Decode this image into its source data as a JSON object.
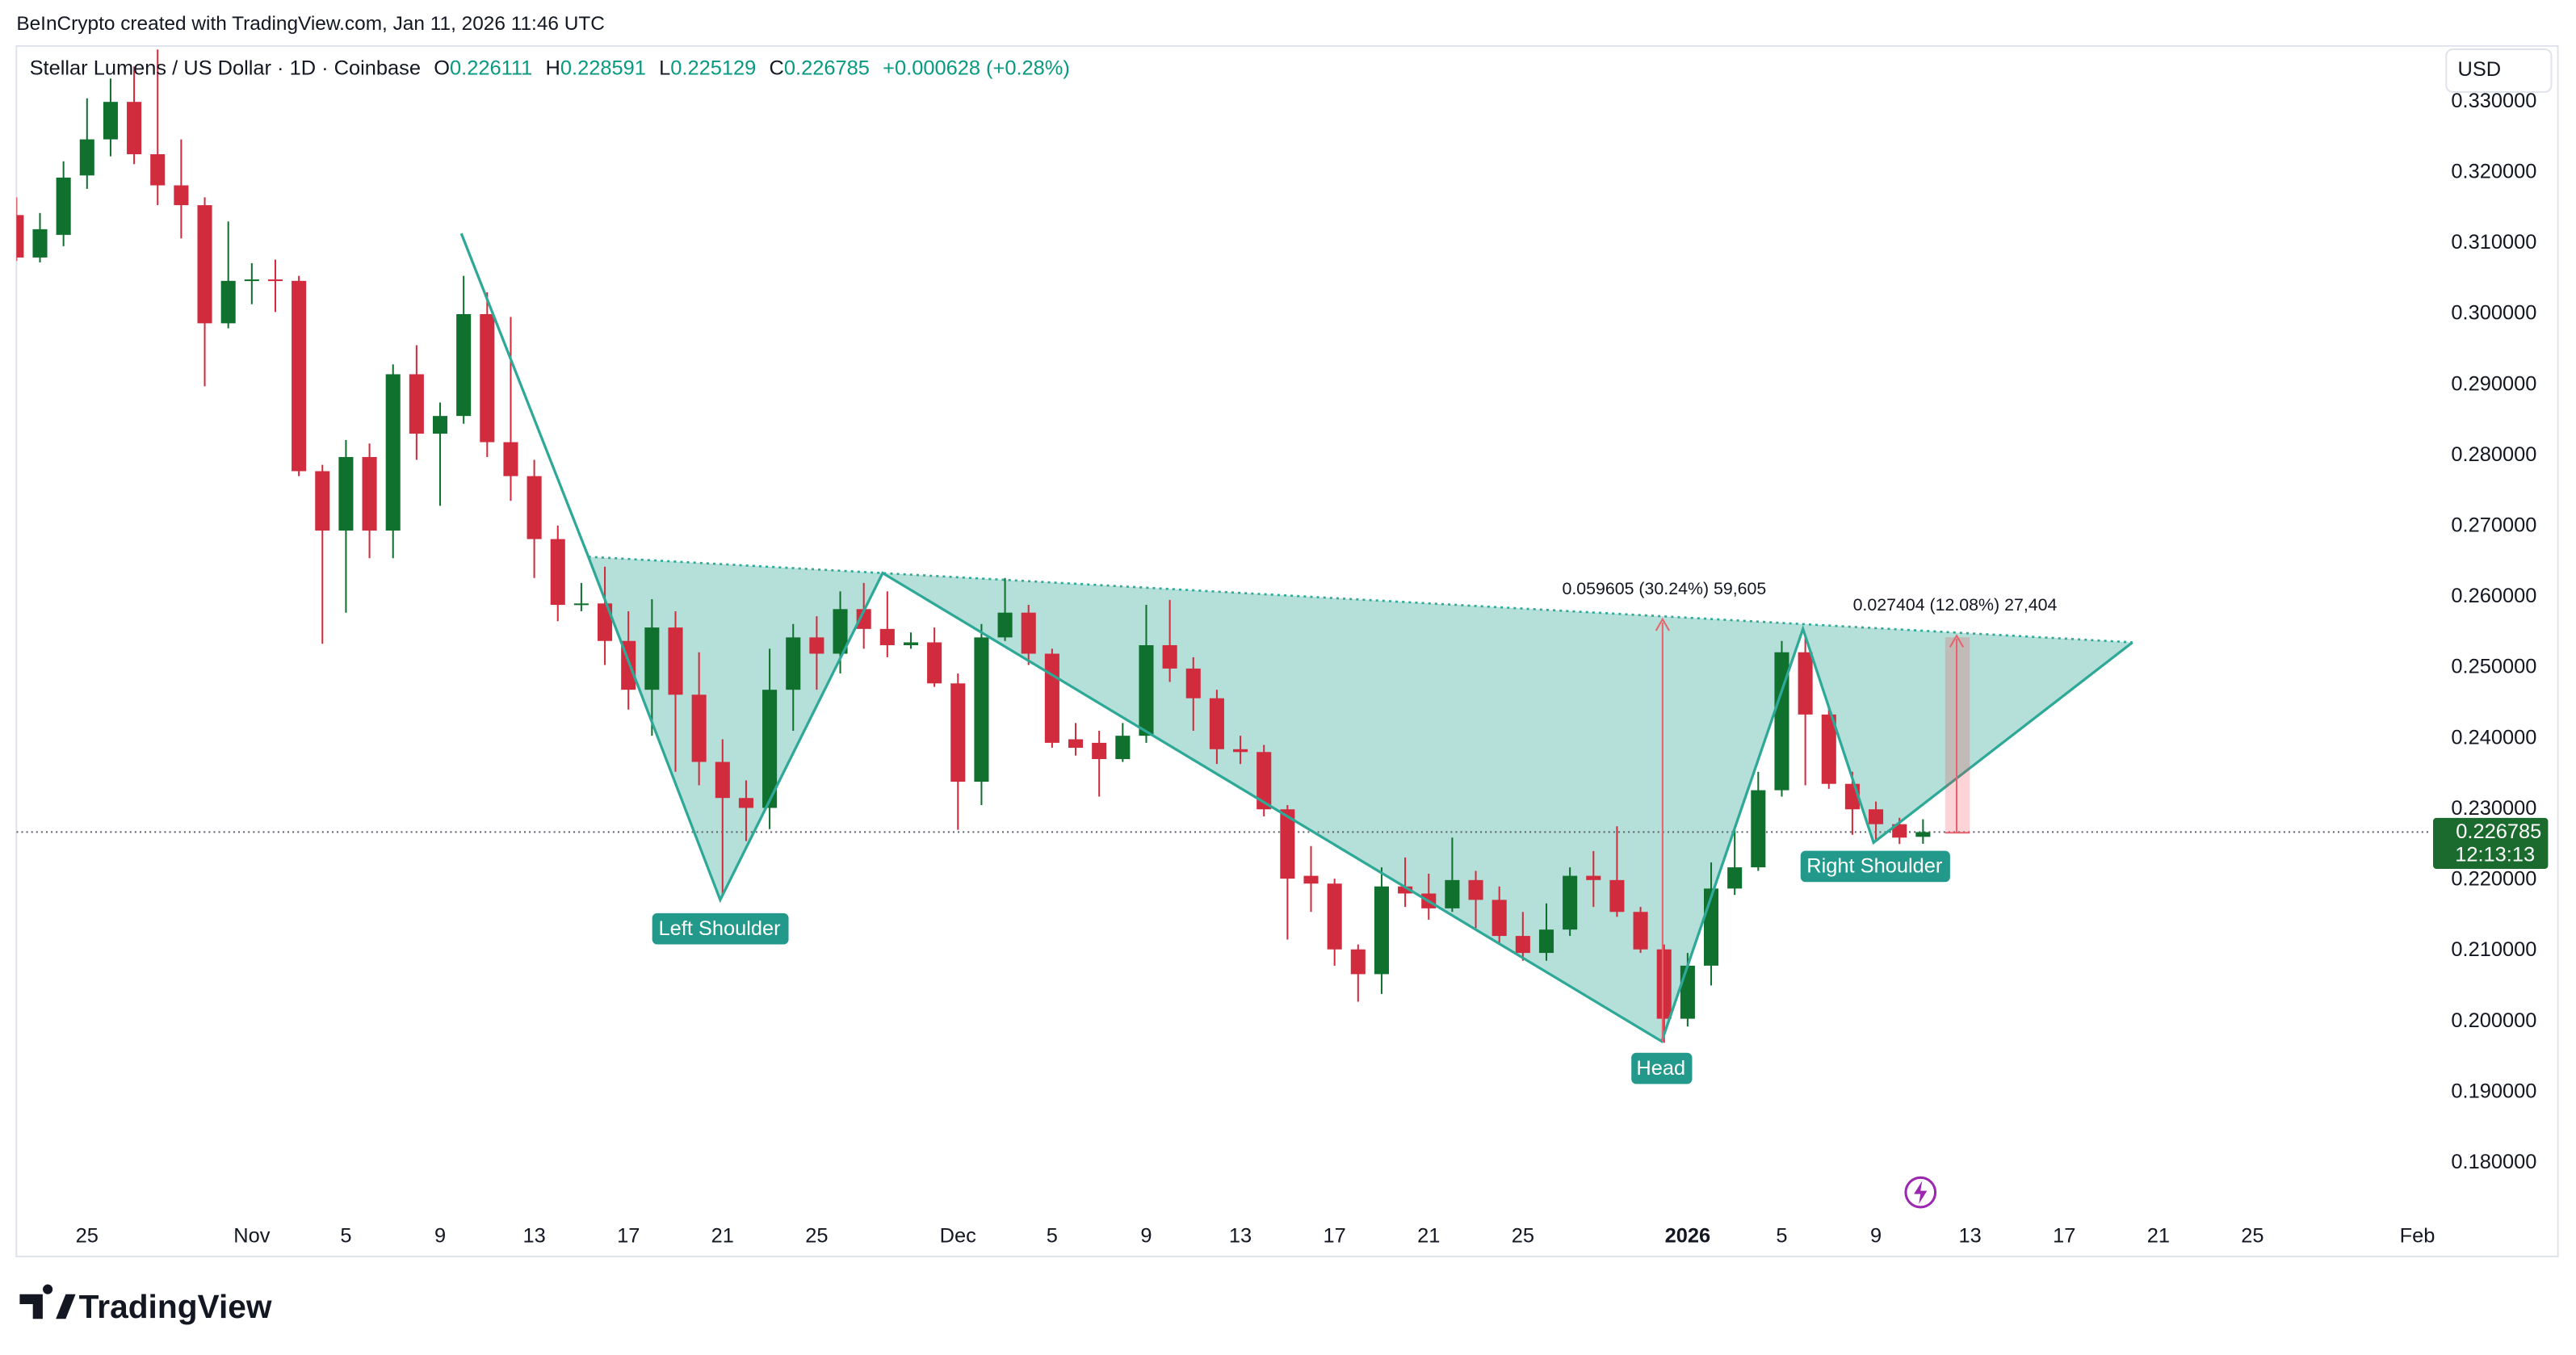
{
  "watermark": "BeInCrypto created with TradingView.com, Jan 11, 2026 11:46 UTC",
  "logo": "TradingView",
  "currency": "USD",
  "countdown": "12:13:13",
  "chart_data": {
    "type": "candlestick",
    "title": "Stellar Lumens / US Dollar · 1D · Coinbase",
    "ohlc_keys": [
      "O",
      "H",
      "L",
      "C"
    ],
    "change_label": "+0.000628 (+0.28%)",
    "up_color": "#10712f",
    "down_color": "#d12c3e",
    "x": [
      0,
      1,
      2,
      3,
      4,
      5,
      6,
      7,
      8,
      9,
      10,
      11,
      12,
      13,
      14,
      15,
      16,
      17,
      18,
      19,
      20,
      21,
      22,
      23,
      24,
      25,
      26,
      27,
      28,
      29,
      30,
      31,
      32,
      33,
      34,
      35,
      36,
      37,
      38,
      39,
      40,
      41,
      42,
      43,
      44,
      45,
      46,
      47,
      48,
      49,
      50,
      51,
      52,
      53,
      54,
      55,
      56,
      57,
      58,
      59,
      60,
      61,
      62,
      63,
      64,
      65,
      66,
      67,
      68,
      69,
      70,
      71,
      72,
      73,
      74,
      75,
      76,
      77,
      78,
      79,
      80,
      81
    ],
    "open": [
      0.314,
      0.308,
      0.3112,
      0.3196,
      0.3247,
      0.33,
      0.3226,
      0.3182,
      0.3154,
      0.2987,
      0.3047,
      0.3049,
      0.3047,
      0.2778,
      0.2694,
      0.2798,
      0.2694,
      0.2915,
      0.2831,
      0.2856,
      0.3,
      0.2819,
      0.2771,
      0.2682,
      0.2589,
      0.2591,
      0.2538,
      0.2469,
      0.2557,
      0.2462,
      0.2367,
      0.2316,
      0.2302,
      0.2469,
      0.2543,
      0.252,
      0.2583,
      0.2555,
      0.2532,
      0.2536,
      0.2478,
      0.2339,
      0.2543,
      0.2578,
      0.252,
      0.2399,
      0.2394,
      0.2371,
      0.2404,
      0.2532,
      0.2499,
      0.2457,
      0.2385,
      0.2381,
      0.23,
      0.2206,
      0.2195,
      0.2102,
      0.2067,
      0.2191,
      0.2181,
      0.216,
      0.22,
      0.2172,
      0.2121,
      0.2097,
      0.213,
      0.2206,
      0.22,
      0.2155,
      0.2102,
      0.2004,
      0.2079,
      0.2188,
      0.2218,
      0.2327,
      0.2522,
      0.2434,
      0.2336,
      0.23,
      0.2279,
      0.226111
    ],
    "high": [
      0.3165,
      0.3143,
      0.3216,
      0.3305,
      0.3333,
      0.335,
      0.3374,
      0.3247,
      0.3165,
      0.3131,
      0.3072,
      0.3077,
      0.3054,
      0.2787,
      0.2822,
      0.2817,
      0.2929,
      0.2956,
      0.2875,
      0.3054,
      0.3031,
      0.2996,
      0.2794,
      0.2701,
      0.262,
      0.2643,
      0.258,
      0.2597,
      0.258,
      0.2522,
      0.2399,
      0.2341,
      0.2527,
      0.2562,
      0.2573,
      0.2608,
      0.262,
      0.2608,
      0.255,
      0.2557,
      0.2492,
      0.2562,
      0.2627,
      0.2589,
      0.2527,
      0.2422,
      0.2411,
      0.2422,
      0.2589,
      0.2596,
      0.2515,
      0.2469,
      0.2404,
      0.2391,
      0.2306,
      0.2248,
      0.2202,
      0.2109,
      0.2218,
      0.2232,
      0.2209,
      0.226,
      0.2213,
      0.2191,
      0.2155,
      0.2167,
      0.2218,
      0.2241,
      0.2276,
      0.2162,
      0.2109,
      0.2097,
      0.2225,
      0.2271,
      0.2353,
      0.2538,
      0.2543,
      0.2446,
      0.2353,
      0.2311,
      0.2288,
      0.228591
    ],
    "low": [
      0.3075,
      0.3073,
      0.3096,
      0.3177,
      0.3223,
      0.3212,
      0.3154,
      0.3107,
      0.2898,
      0.298,
      0.3014,
      0.3003,
      0.2771,
      0.2534,
      0.2578,
      0.2655,
      0.2655,
      0.2794,
      0.2729,
      0.2845,
      0.2798,
      0.2736,
      0.2627,
      0.2566,
      0.258,
      0.2504,
      0.2441,
      0.2404,
      0.2353,
      0.2334,
      0.2179,
      0.2255,
      0.2272,
      0.2411,
      0.2469,
      0.2492,
      0.2527,
      0.2515,
      0.2527,
      0.2473,
      0.2271,
      0.2306,
      0.2538,
      0.2504,
      0.2387,
      0.2376,
      0.2318,
      0.2367,
      0.2394,
      0.248,
      0.2411,
      0.2364,
      0.2364,
      0.229,
      0.2116,
      0.2155,
      0.2079,
      0.2028,
      0.2039,
      0.2162,
      0.2144,
      0.2155,
      0.2132,
      0.2109,
      0.2086,
      0.2086,
      0.2121,
      0.2162,
      0.2148,
      0.2097,
      0.197,
      0.1993,
      0.2051,
      0.2179,
      0.2213,
      0.2318,
      0.2334,
      0.2329,
      0.2264,
      0.2255,
      0.2251,
      0.225129
    ],
    "close": [
      0.308,
      0.312,
      0.3193,
      0.3247,
      0.33,
      0.3226,
      0.3182,
      0.3154,
      0.2987,
      0.3047,
      0.3049,
      0.3047,
      0.2778,
      0.2694,
      0.2798,
      0.2694,
      0.2915,
      0.2831,
      0.2856,
      0.3,
      0.2819,
      0.2771,
      0.2682,
      0.2589,
      0.2591,
      0.2538,
      0.2469,
      0.2557,
      0.2462,
      0.2367,
      0.2316,
      0.2302,
      0.2469,
      0.2543,
      0.252,
      0.2583,
      0.2555,
      0.2532,
      0.2536,
      0.2478,
      0.2339,
      0.2543,
      0.2578,
      0.252,
      0.2394,
      0.2387,
      0.2371,
      0.2404,
      0.2532,
      0.2499,
      0.2457,
      0.2385,
      0.2381,
      0.23,
      0.2202,
      0.2195,
      0.2102,
      0.2067,
      0.2191,
      0.2181,
      0.216,
      0.22,
      0.2172,
      0.2121,
      0.2097,
      0.213,
      0.2206,
      0.22,
      0.2155,
      0.2102,
      0.2004,
      0.2079,
      0.2188,
      0.2218,
      0.2327,
      0.2522,
      0.2434,
      0.2336,
      0.23,
      0.2279,
      0.226,
      0.226785
    ],
    "xlim": [
      0,
      102.6
    ],
    "xticks": [
      {
        "value": 3,
        "label": "25"
      },
      {
        "value": 10,
        "label": "Nov"
      },
      {
        "value": 14,
        "label": "5"
      },
      {
        "value": 18,
        "label": "9"
      },
      {
        "value": 22,
        "label": "13"
      },
      {
        "value": 26,
        "label": "17"
      },
      {
        "value": 30,
        "label": "21"
      },
      {
        "value": 34,
        "label": "25"
      },
      {
        "value": 40,
        "label": "Dec"
      },
      {
        "value": 44,
        "label": "5"
      },
      {
        "value": 48,
        "label": "9"
      },
      {
        "value": 52,
        "label": "13"
      },
      {
        "value": 56,
        "label": "17"
      },
      {
        "value": 60,
        "label": "21"
      },
      {
        "value": 64,
        "label": "25"
      },
      {
        "value": 71,
        "label": "2026",
        "bold": true
      },
      {
        "value": 75,
        "label": "5"
      },
      {
        "value": 79,
        "label": "9"
      },
      {
        "value": 83,
        "label": "13"
      },
      {
        "value": 87,
        "label": "17"
      },
      {
        "value": 91,
        "label": "21"
      },
      {
        "value": 95,
        "label": "25"
      },
      {
        "value": 102,
        "label": "Feb"
      }
    ],
    "ylim": [
      0.1726,
      0.3379
    ],
    "yticks": [
      {
        "value": 0.18,
        "label": "0.180000"
      },
      {
        "value": 0.19,
        "label": "0.190000"
      },
      {
        "value": 0.2,
        "label": "0.200000"
      },
      {
        "value": 0.21,
        "label": "0.210000"
      },
      {
        "value": 0.22,
        "label": "0.220000"
      },
      {
        "value": 0.23,
        "label": "0.230000"
      },
      {
        "value": 0.24,
        "label": "0.240000"
      },
      {
        "value": 0.25,
        "label": "0.250000"
      },
      {
        "value": 0.26,
        "label": "0.260000"
      },
      {
        "value": 0.27,
        "label": "0.270000"
      },
      {
        "value": 0.28,
        "label": "0.280000"
      },
      {
        "value": 0.29,
        "label": "0.290000"
      },
      {
        "value": 0.3,
        "label": "0.300000"
      },
      {
        "value": 0.31,
        "label": "0.310000"
      },
      {
        "value": 0.32,
        "label": "0.320000"
      },
      {
        "value": 0.33,
        "label": "0.330000"
      }
    ],
    "grid": false,
    "pattern": {
      "color": "#2ea897",
      "x": [
        18.9,
        24.3,
        29.9,
        36.8,
        69.9,
        75.9,
        78.9,
        89.9
      ],
      "y": [
        0.3114,
        0.2657,
        0.2172,
        0.2634,
        0.1972,
        0.2555,
        0.2253,
        0.2536
      ]
    },
    "annotations": {
      "labels": [
        "Left Shoulder",
        "Head",
        "Right Shoulder"
      ],
      "measures": [
        "0.059605 (30.24%) 59,605",
        "0.027404 (12.08%) 27,404"
      ]
    }
  }
}
